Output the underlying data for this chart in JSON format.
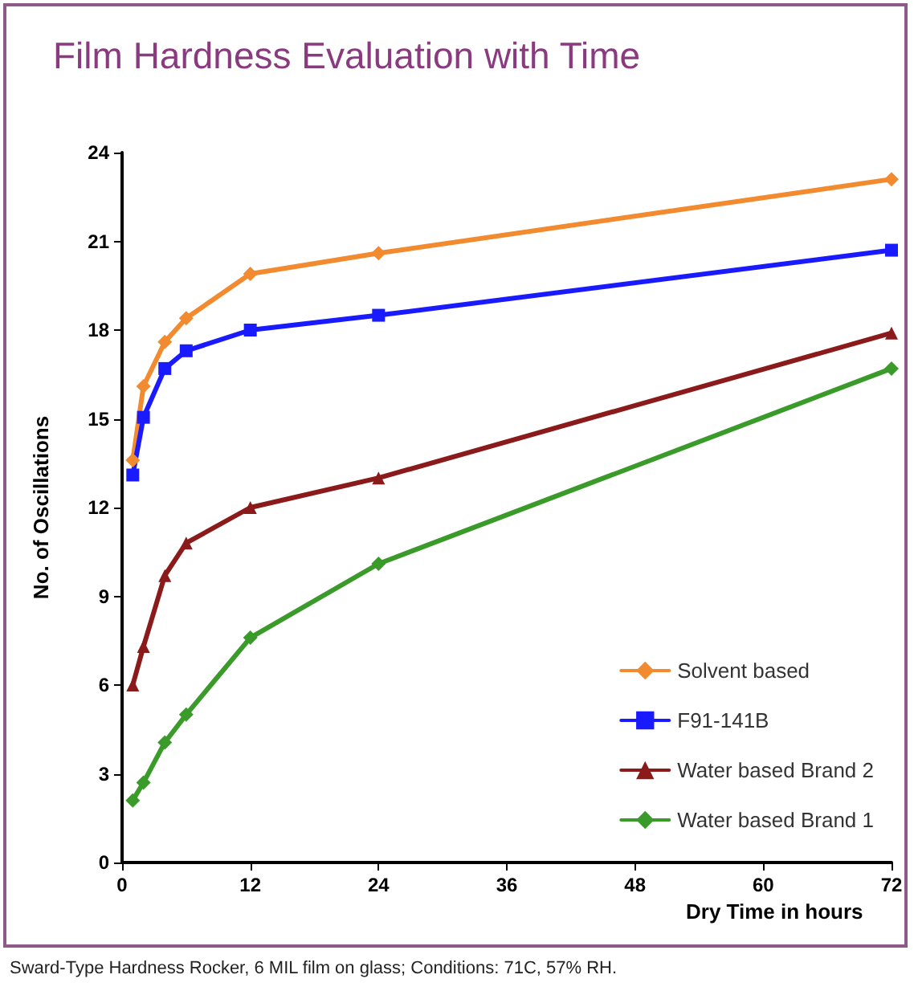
{
  "chart_data": {
    "type": "line",
    "title": "Film Hardness Evaluation with Time",
    "xlabel": "Dry Time in hours",
    "ylabel": "No. of Oscillations",
    "x": [
      1,
      2,
      4,
      6,
      12,
      24,
      72
    ],
    "series": [
      {
        "name": "Solvent based",
        "color": "#f28a30",
        "marker": "diamond",
        "values": [
          13.6,
          16.1,
          17.6,
          18.4,
          19.9,
          20.6,
          23.1
        ]
      },
      {
        "name": "F91-141B",
        "color": "#1a1aff",
        "marker": "square",
        "values": [
          13.1,
          15.05,
          16.7,
          17.3,
          18.0,
          18.5,
          20.7
        ]
      },
      {
        "name": "Water based Brand 2",
        "color": "#8b1a1a",
        "marker": "triangle",
        "values": [
          6.0,
          7.3,
          9.7,
          10.8,
          12.0,
          13.0,
          17.9
        ]
      },
      {
        "name": "Water based Brand 1",
        "color": "#3a9a2a",
        "marker": "diamond",
        "values": [
          2.1,
          2.7,
          4.06,
          5.0,
          7.6,
          10.1,
          16.7
        ]
      }
    ],
    "xlim": [
      0,
      72
    ],
    "xticks": [
      0,
      12,
      24,
      36,
      48,
      60,
      72
    ],
    "ylim": [
      0,
      24
    ],
    "yticks": [
      0,
      3,
      6,
      9,
      12,
      15,
      18,
      21,
      24
    ],
    "grid": false,
    "legend": "bottom right",
    "line_style": "solid",
    "annotations": [
      "Sward-Type Hardness Rocker, 6 MIL film on glass; Conditions: 71C, 57% RH."
    ]
  }
}
